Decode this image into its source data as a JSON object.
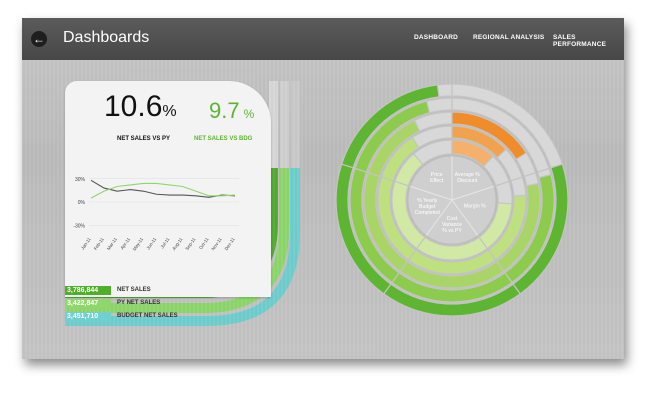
{
  "header": {
    "title": "Dashboards",
    "back_glyph": "←",
    "nav": [
      "DASHBOARD",
      "REGIONAL ANALYSIS",
      "SALES PERFORMANCE"
    ]
  },
  "kpis": [
    {
      "value": "10.6",
      "unit": "%",
      "label": "NET SALES VS PY",
      "color": "#111111"
    },
    {
      "value": "9.7",
      "unit": "%",
      "label": "NET SALES VS BDG",
      "color": "#5cb531"
    }
  ],
  "chart_data": {
    "type": "line",
    "categories": [
      "Jan-11",
      "Feb-11",
      "Mar-11",
      "Apr-11",
      "May-11",
      "Jun-11",
      "Jul-11",
      "Aug-11",
      "Sep-11",
      "Oct-11",
      "Nov-11",
      "Dec-11"
    ],
    "y_ticks": [
      "30%",
      "0%",
      "-30%"
    ],
    "ylim": [
      -40,
      40
    ],
    "series": [
      {
        "values": [
          28,
          18,
          14,
          16,
          14,
          10,
          9,
          9,
          8,
          6,
          9,
          8
        ],
        "color": "#555555"
      },
      {
        "values": [
          5,
          14,
          20,
          22,
          24,
          24,
          22,
          20,
          14,
          8,
          8,
          9
        ],
        "color": "#8fd66e"
      }
    ]
  },
  "legend": [
    {
      "value": "3,786,844",
      "name": "NET SALES",
      "color": "#4fae2a"
    },
    {
      "value": "3,422,847",
      "name": "PY NET SALES",
      "color": "#8ed86b"
    },
    {
      "value": "3,451,710",
      "name": "BUDGET NET SALES",
      "color": "#6fd0cf"
    }
  ],
  "radial": {
    "segments": [
      "Price Effect",
      "Average % Discount",
      "Margin %",
      "Cost Variance % vs PY",
      "% Yearly Budget Completed"
    ],
    "colors": {
      "accent": "#f08c2a",
      "green_dark": "#4fae2a",
      "green_light": "#b8e07a",
      "track": "#d8d8d8"
    }
  }
}
